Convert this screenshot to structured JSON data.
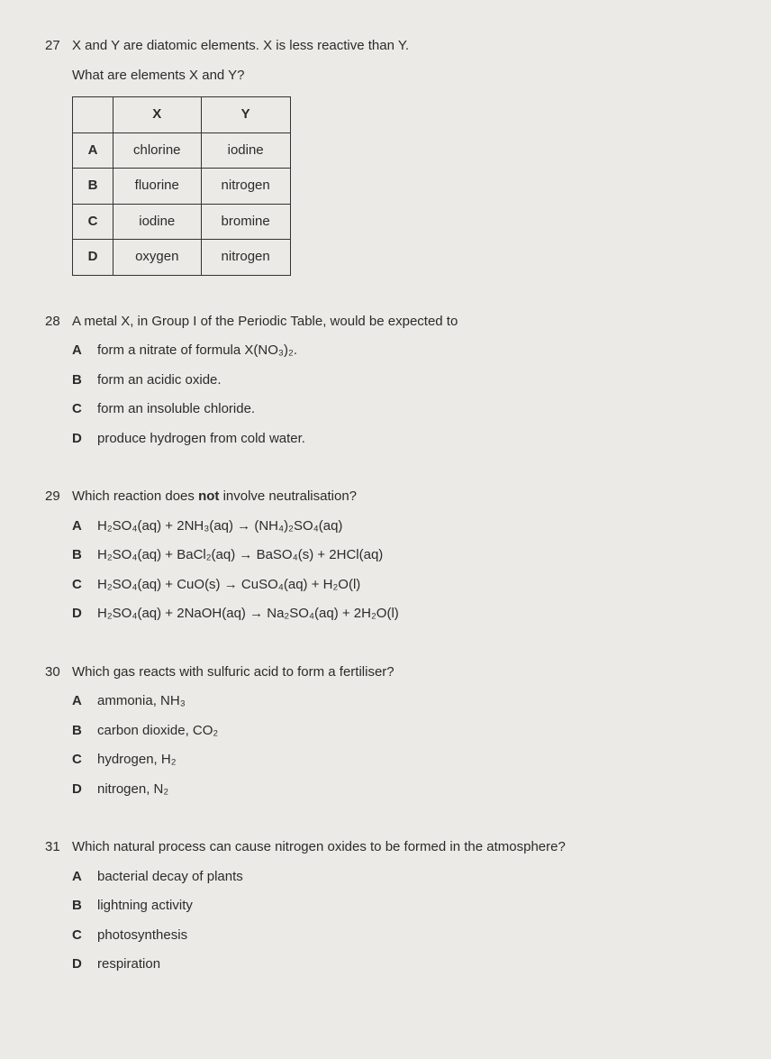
{
  "q27": {
    "number": "27",
    "stem1": "X and Y are diatomic elements. X is less reactive than Y.",
    "stem2": "What are elements X and Y?",
    "table": {
      "head_x": "X",
      "head_y": "Y",
      "rows": [
        {
          "label": "A",
          "x": "chlorine",
          "y": "iodine"
        },
        {
          "label": "B",
          "x": "fluorine",
          "y": "nitrogen"
        },
        {
          "label": "C",
          "x": "iodine",
          "y": "bromine"
        },
        {
          "label": "D",
          "x": "oxygen",
          "y": "nitrogen"
        }
      ]
    }
  },
  "q28": {
    "number": "28",
    "stem": "A metal X, in Group I of the Periodic Table, would be expected to",
    "opts": {
      "A": "form a nitrate of formula X(NO₃)₂.",
      "B": "form an acidic oxide.",
      "C": "form an insoluble chloride.",
      "D": "produce hydrogen from cold water."
    }
  },
  "q29": {
    "number": "29",
    "stem": "Which reaction does not involve neutralisation?",
    "opts": {
      "A": "H₂SO₄(aq) + 2NH₃(aq) → (NH₄)₂SO₄(aq)",
      "B": "H₂SO₄(aq) + BaCl₂(aq) → BaSO₄(s) + 2HCl(aq)",
      "C": "H₂SO₄(aq) + CuO(s) → CuSO₄(aq) + H₂O(l)",
      "D": "H₂SO₄(aq) + 2NaOH(aq) → Na₂SO₄(aq) + 2H₂O(l)"
    }
  },
  "q30": {
    "number": "30",
    "stem": "Which gas reacts with sulfuric acid to form a fertiliser?",
    "opts": {
      "A": "ammonia, NH₃",
      "B": "carbon dioxide, CO₂",
      "C": "hydrogen, H₂",
      "D": "nitrogen, N₂"
    }
  },
  "q31": {
    "number": "31",
    "stem": "Which natural process can cause nitrogen oxides to be formed in the atmosphere?",
    "opts": {
      "A": "bacterial decay of plants",
      "B": "lightning activity",
      "C": "photosynthesis",
      "D": "respiration"
    }
  }
}
